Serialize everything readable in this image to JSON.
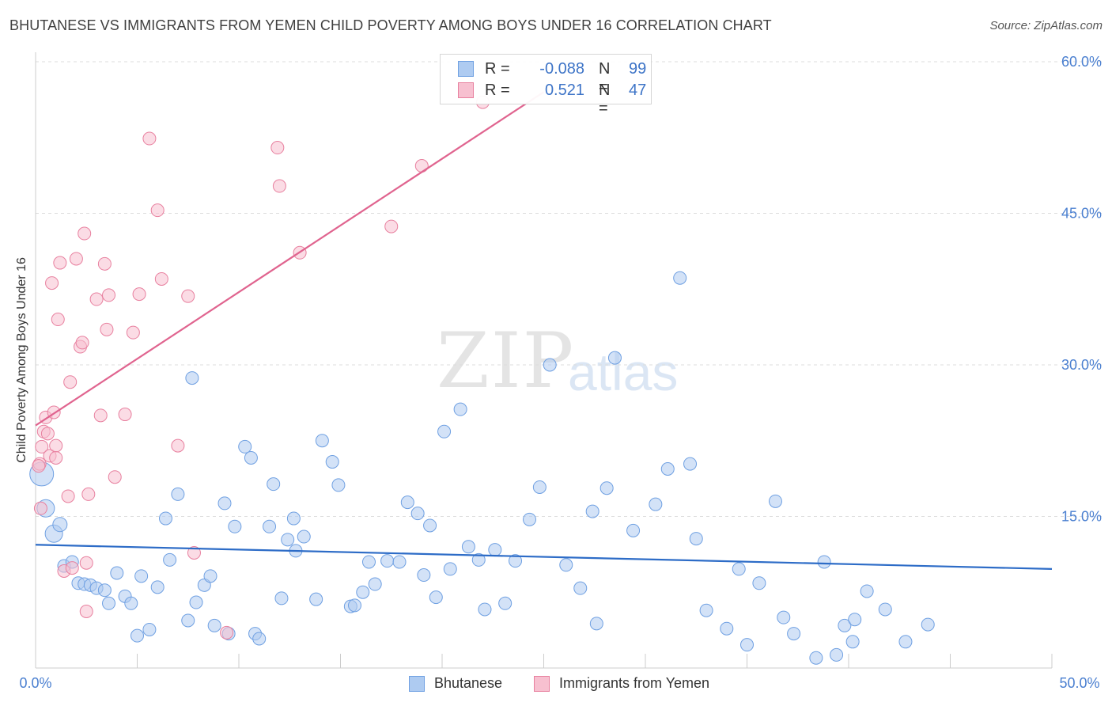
{
  "title": "BHUTANESE VS IMMIGRANTS FROM YEMEN CHILD POVERTY AMONG BOYS UNDER 16 CORRELATION CHART",
  "source": "Source: ZipAtlas.com",
  "watermark": {
    "zip": "ZIP",
    "atlas": "atlas"
  },
  "legend": {
    "r_label": "R =",
    "n_label": "N =",
    "series": [
      {
        "name": "Bhutanese",
        "r": "-0.088",
        "n": "99",
        "color": "#6fa0e2",
        "fill": "#aecbf1"
      },
      {
        "name": "Immigrants from Yemen",
        "r": "0.521",
        "n": "47",
        "color": "#e8809f",
        "fill": "#f7c0d0"
      }
    ]
  },
  "chart_data": {
    "type": "scatter",
    "title": "BHUTANESE VS IMMIGRANTS FROM YEMEN CHILD POVERTY AMONG BOYS UNDER 16 CORRELATION CHART",
    "xlabel": "",
    "ylabel": "Child Poverty Among Boys Under 16",
    "xlim": [
      0,
      50
    ],
    "ylim": [
      0,
      60
    ],
    "x_tick_labels": [
      "0.0%",
      "50.0%"
    ],
    "y_ticks": [
      15,
      30,
      45,
      60
    ],
    "y_tick_labels": [
      "15.0%",
      "30.0%",
      "45.0%",
      "60.0%"
    ],
    "grid": true,
    "series": [
      {
        "name": "Bhutanese",
        "color": "#6fa0e2",
        "trend": {
          "x": [
            0,
            50
          ],
          "y": [
            12.2,
            9.8
          ],
          "color": "#2d6cc7"
        },
        "points": [
          [
            0.3,
            19.2
          ],
          [
            0.5,
            15.8
          ],
          [
            0.9,
            13.3
          ],
          [
            1.2,
            14.2
          ],
          [
            1.4,
            10.1
          ],
          [
            1.8,
            10.5
          ],
          [
            2.1,
            8.4
          ],
          [
            2.4,
            8.3
          ],
          [
            2.7,
            8.2
          ],
          [
            3.0,
            7.9
          ],
          [
            3.4,
            7.7
          ],
          [
            3.6,
            6.4
          ],
          [
            4.0,
            9.4
          ],
          [
            4.4,
            7.1
          ],
          [
            4.7,
            6.4
          ],
          [
            5.0,
            3.2
          ],
          [
            5.2,
            9.1
          ],
          [
            5.6,
            3.8
          ],
          [
            6.0,
            8.0
          ],
          [
            6.4,
            14.8
          ],
          [
            6.6,
            10.7
          ],
          [
            7.0,
            17.2
          ],
          [
            7.5,
            4.7
          ],
          [
            7.7,
            28.7
          ],
          [
            7.9,
            6.5
          ],
          [
            8.3,
            8.2
          ],
          [
            8.6,
            9.1
          ],
          [
            8.8,
            4.2
          ],
          [
            9.3,
            16.3
          ],
          [
            9.5,
            3.4
          ],
          [
            9.8,
            14.0
          ],
          [
            10.3,
            21.9
          ],
          [
            10.6,
            20.8
          ],
          [
            10.8,
            3.4
          ],
          [
            11.0,
            2.9
          ],
          [
            11.5,
            14.0
          ],
          [
            11.7,
            18.2
          ],
          [
            12.1,
            6.9
          ],
          [
            12.4,
            12.7
          ],
          [
            12.7,
            14.8
          ],
          [
            12.8,
            11.6
          ],
          [
            13.2,
            13.0
          ],
          [
            13.8,
            6.8
          ],
          [
            14.1,
            22.5
          ],
          [
            14.6,
            20.4
          ],
          [
            14.9,
            18.1
          ],
          [
            15.5,
            6.1
          ],
          [
            15.7,
            6.2
          ],
          [
            16.1,
            7.5
          ],
          [
            16.4,
            10.5
          ],
          [
            16.7,
            8.3
          ],
          [
            17.3,
            10.6
          ],
          [
            17.9,
            10.5
          ],
          [
            18.3,
            16.4
          ],
          [
            18.8,
            15.3
          ],
          [
            19.1,
            9.2
          ],
          [
            19.4,
            14.1
          ],
          [
            19.7,
            7.0
          ],
          [
            20.1,
            23.4
          ],
          [
            20.4,
            9.8
          ],
          [
            20.9,
            25.6
          ],
          [
            21.3,
            12.0
          ],
          [
            21.8,
            10.7
          ],
          [
            22.1,
            5.8
          ],
          [
            22.6,
            11.7
          ],
          [
            23.1,
            6.4
          ],
          [
            23.6,
            10.6
          ],
          [
            24.3,
            14.7
          ],
          [
            24.8,
            17.9
          ],
          [
            25.3,
            30.0
          ],
          [
            26.1,
            10.2
          ],
          [
            26.8,
            7.9
          ],
          [
            27.4,
            15.5
          ],
          [
            27.6,
            4.4
          ],
          [
            28.1,
            17.8
          ],
          [
            28.5,
            30.7
          ],
          [
            29.4,
            13.6
          ],
          [
            30.5,
            16.2
          ],
          [
            31.1,
            19.7
          ],
          [
            31.7,
            38.6
          ],
          [
            32.2,
            20.2
          ],
          [
            32.5,
            12.8
          ],
          [
            33.0,
            5.7
          ],
          [
            34.0,
            3.9
          ],
          [
            34.6,
            9.8
          ],
          [
            35.0,
            2.3
          ],
          [
            35.6,
            8.4
          ],
          [
            36.4,
            16.5
          ],
          [
            36.8,
            5.0
          ],
          [
            37.3,
            3.4
          ],
          [
            38.4,
            1.0
          ],
          [
            38.8,
            10.5
          ],
          [
            39.4,
            1.3
          ],
          [
            39.8,
            4.2
          ],
          [
            40.2,
            2.6
          ],
          [
            40.3,
            4.8
          ],
          [
            40.9,
            7.6
          ],
          [
            41.8,
            5.8
          ],
          [
            42.8,
            2.6
          ],
          [
            43.9,
            4.3
          ]
        ]
      },
      {
        "name": "Immigrants from Yemen",
        "color": "#e8809f",
        "trend": {
          "x": [
            0,
            25.0
          ],
          "y": [
            24.0,
            57.0
          ],
          "color": "#e0648f"
        },
        "points": [
          [
            0.2,
            20.2
          ],
          [
            0.3,
            21.9
          ],
          [
            0.4,
            23.4
          ],
          [
            0.5,
            24.8
          ],
          [
            0.6,
            23.2
          ],
          [
            0.7,
            21.0
          ],
          [
            0.8,
            38.1
          ],
          [
            0.9,
            25.3
          ],
          [
            1.0,
            22.0
          ],
          [
            1.1,
            34.5
          ],
          [
            1.2,
            40.1
          ],
          [
            1.4,
            9.6
          ],
          [
            1.6,
            17.0
          ],
          [
            1.7,
            28.3
          ],
          [
            1.8,
            9.9
          ],
          [
            2.0,
            40.5
          ],
          [
            2.2,
            31.8
          ],
          [
            2.3,
            32.2
          ],
          [
            2.4,
            43.0
          ],
          [
            2.5,
            5.6
          ],
          [
            2.6,
            17.2
          ],
          [
            2.5,
            10.4
          ],
          [
            3.0,
            36.5
          ],
          [
            3.2,
            25.0
          ],
          [
            3.4,
            40.0
          ],
          [
            3.5,
            33.5
          ],
          [
            3.6,
            36.9
          ],
          [
            3.9,
            18.9
          ],
          [
            4.4,
            25.1
          ],
          [
            4.8,
            33.2
          ],
          [
            5.1,
            37.0
          ],
          [
            5.6,
            52.4
          ],
          [
            6.0,
            45.3
          ],
          [
            6.2,
            38.5
          ],
          [
            7.0,
            22.0
          ],
          [
            7.5,
            36.8
          ],
          [
            7.8,
            11.4
          ],
          [
            9.4,
            3.5
          ],
          [
            11.9,
            51.5
          ],
          [
            12.0,
            47.7
          ],
          [
            13.0,
            41.1
          ],
          [
            17.5,
            43.7
          ],
          [
            19.0,
            49.7
          ],
          [
            22.0,
            56.0
          ],
          [
            0.15,
            20.0
          ],
          [
            0.25,
            15.8
          ],
          [
            1.0,
            20.8
          ]
        ]
      }
    ]
  }
}
